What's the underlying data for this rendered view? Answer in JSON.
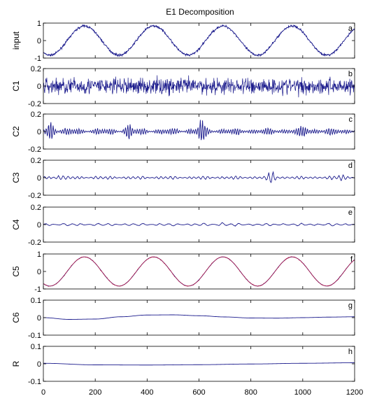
{
  "chart_data": {
    "type": "line",
    "title": "E1 Decomposition",
    "xlim": [
      0,
      1200
    ],
    "x_ticks": [
      "0",
      "200",
      "400",
      "600",
      "800",
      "1000",
      "1200"
    ],
    "line_color": "#1a1a8c",
    "overlay_color": "#c0143c",
    "panels": [
      {
        "ylabel": "input",
        "panel_label": "a",
        "ylim": [
          -1.2,
          1.2
        ],
        "y_ticks": [
          "1",
          "0",
          "-1"
        ],
        "series": {
          "kind": "sine_noisy",
          "amplitude": 1.0,
          "period": 267,
          "noise": 0.07
        }
      },
      {
        "ylabel": "C1",
        "panel_label": "b",
        "ylim": [
          -0.2,
          0.2
        ],
        "y_ticks": [
          "0.2",
          "0",
          "-0.2"
        ],
        "series": {
          "kind": "noise",
          "amplitude": 0.09
        }
      },
      {
        "ylabel": "C2",
        "panel_label": "c",
        "ylim": [
          -0.2,
          0.2
        ],
        "y_ticks": [
          "0.2",
          "0",
          "-0.2"
        ],
        "series": {
          "kind": "osc",
          "amplitude": 0.05,
          "period": 9,
          "bursts": [
            [
              30,
              0.1
            ],
            [
              330,
              0.07
            ],
            [
              610,
              0.11
            ],
            [
              1005,
              0.05
            ]
          ]
        }
      },
      {
        "ylabel": "C3",
        "panel_label": "d",
        "ylim": [
          -0.2,
          0.2
        ],
        "y_ticks": [
          "0.2",
          "0",
          "-0.2"
        ],
        "series": {
          "kind": "osc",
          "amplitude": 0.025,
          "period": 18,
          "bursts": [
            [
              880,
              0.07
            ],
            [
              60,
              0.02
            ],
            [
              1150,
              0.03
            ]
          ]
        }
      },
      {
        "ylabel": "C4",
        "panel_label": "e",
        "ylim": [
          -0.2,
          0.2
        ],
        "y_ticks": [
          "0.2",
          "0",
          "-0.2"
        ],
        "series": {
          "kind": "osc",
          "amplitude": 0.02,
          "period": 34,
          "bursts": [
            [
              690,
              0.015
            ]
          ]
        }
      },
      {
        "ylabel": "C5",
        "panel_label": "f",
        "ylim": [
          -1.2,
          1.2
        ],
        "y_ticks": [
          "1",
          "0",
          "-1"
        ],
        "series": {
          "kind": "sine",
          "amplitude": 1.0,
          "period": 267
        },
        "overlay": {
          "kind": "sine_noisy",
          "amplitude": 1.0,
          "period": 267,
          "noise": 0.03
        }
      },
      {
        "ylabel": "C6",
        "panel_label": "g",
        "ylim": [
          -0.1,
          0.1
        ],
        "y_ticks": [
          "0.1",
          "0",
          "-0.1"
        ],
        "series": {
          "kind": "points",
          "x": [
            0,
            100,
            200,
            300,
            400,
            500,
            600,
            700,
            800,
            900,
            1000,
            1100,
            1200
          ],
          "y": [
            0.0,
            -0.01,
            -0.008,
            0.005,
            0.015,
            0.016,
            0.011,
            0.004,
            -0.002,
            -0.003,
            0.0,
            0.003,
            0.005
          ]
        }
      },
      {
        "ylabel": "R",
        "panel_label": "h",
        "ylim": [
          -0.1,
          0.1
        ],
        "y_ticks": [
          "0.1",
          "0",
          "-0.1"
        ],
        "series": {
          "kind": "points",
          "x": [
            0,
            200,
            400,
            600,
            800,
            1000,
            1200
          ],
          "y": [
            0.003,
            -0.006,
            -0.007,
            -0.005,
            -0.001,
            0.003,
            0.006
          ]
        }
      }
    ]
  }
}
